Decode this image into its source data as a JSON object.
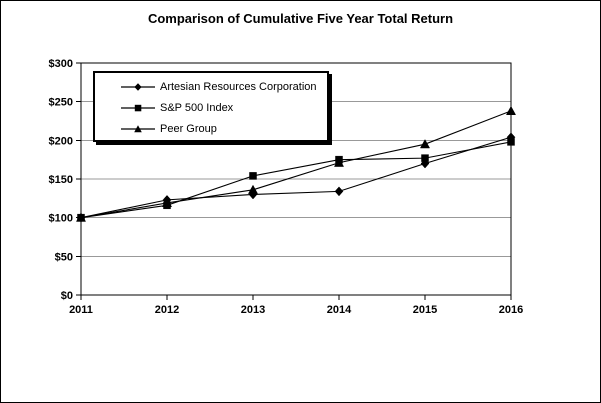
{
  "chart_data": {
    "type": "line",
    "title": "Comparison of Cumulative Five Year Total Return",
    "x_tick_labels": [
      "2011",
      "2012",
      "2013",
      "2014",
      "2015",
      "2016"
    ],
    "y_tick_labels": [
      "$0",
      "$50",
      "$100",
      "$150",
      "$200",
      "$250",
      "$300"
    ],
    "ylim": [
      0,
      300
    ],
    "y_tick_step": 50,
    "grid": true,
    "legend_position": "top-left-inside",
    "series": [
      {
        "name": "Artesian Resources Corporation",
        "marker": "diamond",
        "color": "#000000",
        "values": [
          100,
          123,
          130,
          134,
          170,
          204
        ]
      },
      {
        "name": "S&P 500 Index",
        "marker": "square",
        "color": "#000000",
        "values": [
          100,
          116,
          154,
          175,
          177,
          198
        ]
      },
      {
        "name": "Peer Group",
        "marker": "triangle",
        "color": "#000000",
        "values": [
          100,
          119,
          136,
          171,
          195,
          238
        ]
      }
    ],
    "colors": {
      "line": "#000000",
      "grid": "#999999",
      "axis": "#000000",
      "background": "#ffffff",
      "text": "#000000"
    }
  }
}
